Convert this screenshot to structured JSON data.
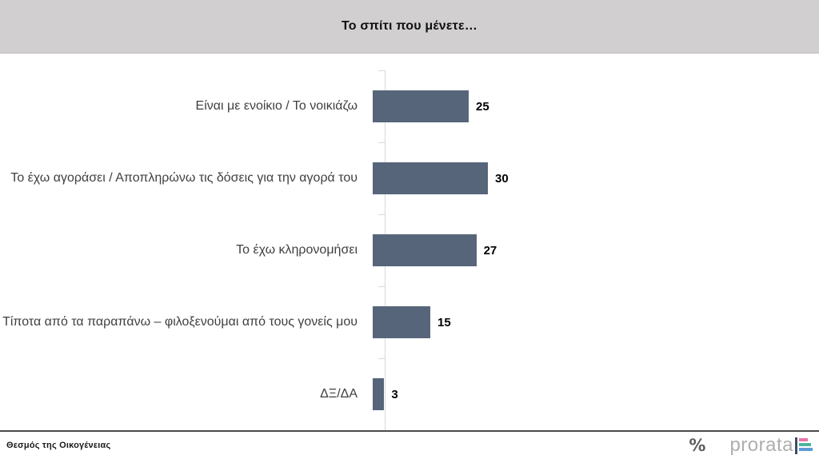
{
  "header": {
    "title": "Το σπίτι που μένετε…"
  },
  "chart_data": {
    "type": "bar",
    "orientation": "horizontal",
    "title": "Το σπίτι που μένετε…",
    "categories": [
      "Είναι με ενοίκιο / Το νοικιάζω",
      "Το έχω αγοράσει / Αποπληρώνω τις δόσεις για την αγορά του",
      "Το έχω κληρονομήσει",
      "Τίποτα από τα παραπάνω – φιλοξενούμαι από τους γονείς μου",
      "ΔΞ/ΔΑ"
    ],
    "values": [
      25,
      30,
      27,
      15,
      3
    ],
    "value_labels_shown": true,
    "xlabel": "",
    "ylabel": "",
    "grid": false,
    "legend": null,
    "bar_color": "#566579",
    "axis_color": "#d9d9d9"
  },
  "footer": {
    "source_label": "Θεσμός της Οικογένειας",
    "logo": {
      "percent_mark": "%",
      "brand": "prorata",
      "icon": "mini-bar-chart-icon",
      "icon_colors": {
        "stem": "#3d4f66",
        "bar_top": "#e873a8",
        "bar_middle": "#4cb49e",
        "bar_bottom": "#5b9bd5"
      }
    }
  },
  "colors": {
    "banner_bg": "#d1cfcf",
    "label_text": "#404040",
    "value_text": "#000000",
    "separator": "#4a4a4a",
    "brand_text": "#aeaeae"
  }
}
